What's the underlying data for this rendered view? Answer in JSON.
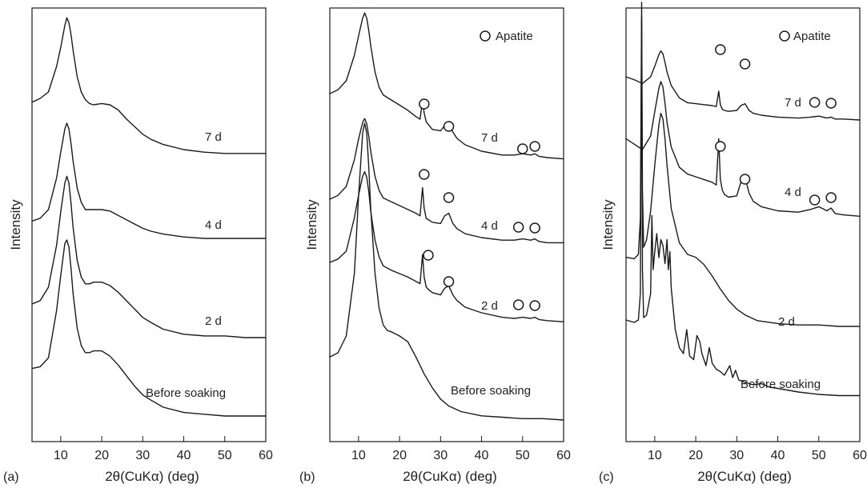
{
  "chart_data": [
    {
      "type": "line",
      "panel_label": "(a)",
      "xlabel": "2θ(CuKα) (deg)",
      "ylabel": "Intensity",
      "xlim": [
        3,
        60
      ],
      "xticks": [
        10,
        20,
        30,
        40,
        50,
        60
      ],
      "y_ticks_shown": false,
      "legend": null,
      "series": [
        {
          "name": "7 d",
          "baseline": 0.0,
          "x": [
            3,
            5,
            7,
            9,
            10,
            11,
            11.5,
            12,
            12.5,
            13,
            14,
            15,
            16,
            17,
            18,
            20,
            22,
            24,
            26,
            28,
            30,
            32,
            35,
            40,
            45,
            50,
            55,
            60
          ],
          "y": [
            0.42,
            0.45,
            0.5,
            0.7,
            0.85,
            1.02,
            1.08,
            1.04,
            0.95,
            0.83,
            0.62,
            0.5,
            0.44,
            0.41,
            0.4,
            0.41,
            0.4,
            0.36,
            0.29,
            0.23,
            0.17,
            0.13,
            0.09,
            0.05,
            0.03,
            0.02,
            0.02,
            0.02
          ]
        },
        {
          "name": "4 d",
          "baseline": 0.0,
          "x": [
            3,
            5,
            7,
            9,
            10,
            11,
            11.5,
            12,
            12.5,
            13,
            14,
            15,
            16,
            17,
            18,
            20,
            22,
            24,
            26,
            28,
            30,
            32,
            35,
            40,
            45,
            50,
            55,
            60
          ],
          "y": [
            0.12,
            0.14,
            0.2,
            0.42,
            0.6,
            0.76,
            0.8,
            0.76,
            0.66,
            0.54,
            0.35,
            0.25,
            0.2,
            0.2,
            0.2,
            0.2,
            0.19,
            0.16,
            0.13,
            0.1,
            0.07,
            0.05,
            0.03,
            0.01,
            0.0,
            0.0,
            0.0,
            0.0
          ]
        },
        {
          "name": "2 d",
          "baseline": 0.0,
          "x": [
            3,
            5,
            7,
            9,
            10,
            11,
            11.5,
            12,
            12.5,
            13,
            14,
            15,
            16,
            17,
            18,
            20,
            22,
            24,
            26,
            28,
            30,
            32,
            35,
            40,
            45,
            50,
            55,
            60
          ],
          "y": [
            0.2,
            0.22,
            0.3,
            0.55,
            0.75,
            0.92,
            0.96,
            0.92,
            0.8,
            0.66,
            0.46,
            0.36,
            0.32,
            0.32,
            0.33,
            0.33,
            0.31,
            0.27,
            0.22,
            0.17,
            0.12,
            0.09,
            0.05,
            0.02,
            0.01,
            0.01,
            0.0,
            0.0
          ]
        },
        {
          "name": "Before soaking",
          "baseline": 0.0,
          "x": [
            3,
            5,
            7,
            9,
            10,
            11,
            11.5,
            12,
            12.5,
            13,
            14,
            15,
            16,
            17,
            18,
            20,
            22,
            24,
            26,
            28,
            30,
            32,
            35,
            40,
            45,
            50,
            55,
            60
          ],
          "y": [
            0.27,
            0.28,
            0.33,
            0.6,
            0.8,
            0.98,
            1.0,
            0.96,
            0.84,
            0.7,
            0.5,
            0.4,
            0.36,
            0.36,
            0.37,
            0.37,
            0.34,
            0.29,
            0.23,
            0.17,
            0.12,
            0.09,
            0.05,
            0.02,
            0.01,
            0.0,
            0.0,
            0.0
          ]
        }
      ]
    },
    {
      "type": "line",
      "panel_label": "(b)",
      "xlabel": "2θ(CuKα) (deg)",
      "ylabel": "Intensity",
      "xlim": [
        3,
        60
      ],
      "xticks": [
        10,
        20,
        30,
        40,
        50,
        60
      ],
      "y_ticks_shown": false,
      "legend": {
        "marker": "open-circle",
        "label": "Apatite",
        "position": "top-right"
      },
      "series": [
        {
          "name": "7 d",
          "x": [
            3,
            5,
            7,
            9,
            10,
            11,
            11.5,
            12,
            12.5,
            13,
            14,
            15,
            16,
            18,
            20,
            22,
            24,
            25,
            25.6,
            26,
            26.5,
            27,
            28,
            30,
            31,
            32,
            33,
            34,
            36,
            40,
            45,
            48,
            50,
            52,
            53,
            54,
            56,
            60
          ],
          "y": [
            0.55,
            0.58,
            0.65,
            0.85,
            1.0,
            1.14,
            1.18,
            1.14,
            1.04,
            0.92,
            0.72,
            0.6,
            0.54,
            0.5,
            0.46,
            0.42,
            0.37,
            0.35,
            0.5,
            0.4,
            0.33,
            0.31,
            0.27,
            0.26,
            0.3,
            0.32,
            0.25,
            0.2,
            0.15,
            0.1,
            0.07,
            0.07,
            0.08,
            0.07,
            0.08,
            0.06,
            0.05,
            0.04
          ]
        },
        {
          "name": "4 d",
          "x": [
            3,
            5,
            7,
            9,
            10,
            11,
            11.5,
            12,
            12.5,
            13,
            14,
            15,
            16,
            18,
            20,
            22,
            24,
            25,
            25.6,
            26,
            26.5,
            27,
            28,
            30,
            31,
            32,
            33,
            34,
            36,
            40,
            45,
            48,
            50,
            52,
            53,
            54,
            56,
            60
          ],
          "y": [
            0.35,
            0.38,
            0.45,
            0.66,
            0.82,
            0.95,
            0.98,
            0.94,
            0.84,
            0.72,
            0.53,
            0.42,
            0.36,
            0.33,
            0.3,
            0.27,
            0.24,
            0.22,
            0.44,
            0.28,
            0.2,
            0.19,
            0.17,
            0.16,
            0.22,
            0.24,
            0.16,
            0.12,
            0.08,
            0.05,
            0.03,
            0.03,
            0.04,
            0.03,
            0.04,
            0.02,
            0.01,
            0.01
          ]
        },
        {
          "name": "2 d",
          "x": [
            3,
            5,
            7,
            9,
            10,
            11,
            11.5,
            12,
            12.5,
            13,
            14,
            15,
            16,
            18,
            20,
            22,
            24,
            25,
            25.6,
            26,
            26.5,
            27,
            28,
            30,
            31,
            32,
            33,
            34,
            36,
            40,
            45,
            48,
            50,
            52,
            53,
            54,
            56,
            60
          ],
          "y": [
            0.55,
            0.58,
            0.65,
            0.95,
            1.15,
            1.32,
            1.36,
            1.31,
            1.18,
            1.0,
            0.75,
            0.6,
            0.52,
            0.48,
            0.45,
            0.42,
            0.38,
            0.36,
            0.62,
            0.42,
            0.33,
            0.31,
            0.28,
            0.26,
            0.32,
            0.34,
            0.26,
            0.21,
            0.15,
            0.1,
            0.06,
            0.05,
            0.06,
            0.05,
            0.06,
            0.04,
            0.03,
            0.02
          ]
        },
        {
          "name": "Before soaking",
          "x": [
            3,
            5,
            7,
            9,
            10,
            11,
            11.5,
            12,
            12.5,
            13,
            14,
            15,
            16,
            17,
            18,
            20,
            22,
            24,
            26,
            28,
            30,
            32,
            35,
            40,
            45,
            50,
            55,
            60
          ],
          "y": [
            0.45,
            0.48,
            0.6,
            1.05,
            1.6,
            2.05,
            2.12,
            2.05,
            1.8,
            1.5,
            1.05,
            0.8,
            0.68,
            0.64,
            0.63,
            0.6,
            0.56,
            0.45,
            0.33,
            0.23,
            0.15,
            0.1,
            0.06,
            0.03,
            0.02,
            0.01,
            0.01,
            0.0
          ]
        }
      ],
      "apatite_markers": [
        {
          "series": "7 d",
          "x": [
            26,
            32,
            50,
            53
          ]
        },
        {
          "series": "4 d",
          "x": [
            26,
            32,
            49,
            53
          ]
        },
        {
          "series": "2 d",
          "x": [
            27,
            32,
            49,
            53
          ]
        }
      ]
    },
    {
      "type": "line",
      "panel_label": "(c)",
      "xlabel": "2θ(CuKα) (deg)",
      "ylabel": "Intensity",
      "xlim": [
        3,
        60
      ],
      "xticks": [
        10,
        20,
        30,
        40,
        50,
        60
      ],
      "y_ticks_shown": false,
      "legend": {
        "marker": "open-circle",
        "label": "Apatite",
        "position": "top-right"
      },
      "series": [
        {
          "name": "7 d",
          "x": [
            3,
            5,
            7,
            9,
            10,
            11,
            11.5,
            12,
            12.5,
            13,
            14,
            16,
            18,
            20,
            22,
            24,
            25,
            25.6,
            26,
            26.5,
            27,
            28,
            30,
            31,
            32,
            33,
            34,
            36,
            40,
            45,
            48,
            50,
            52,
            53,
            54,
            56,
            60
          ],
          "y": [
            0.45,
            0.42,
            0.38,
            0.45,
            0.56,
            0.68,
            0.72,
            0.69,
            0.6,
            0.5,
            0.36,
            0.23,
            0.18,
            0.17,
            0.16,
            0.15,
            0.14,
            0.3,
            0.16,
            0.11,
            0.1,
            0.09,
            0.1,
            0.15,
            0.17,
            0.1,
            0.07,
            0.05,
            0.03,
            0.02,
            0.03,
            0.04,
            0.02,
            0.03,
            0.01,
            0.01,
            0.0
          ]
        },
        {
          "name": "4 d",
          "x": [
            3,
            5,
            7,
            9,
            10,
            11,
            11.5,
            12,
            12.5,
            13,
            14,
            16,
            18,
            20,
            22,
            24,
            25,
            25.6,
            26,
            26.5,
            27,
            28,
            30,
            31,
            32,
            33,
            34,
            36,
            40,
            45,
            48,
            50,
            52,
            53,
            54,
            56,
            60
          ],
          "y": [
            0.58,
            0.54,
            0.5,
            0.6,
            0.78,
            0.95,
            1.0,
            0.96,
            0.84,
            0.7,
            0.52,
            0.37,
            0.32,
            0.3,
            0.28,
            0.26,
            0.24,
            0.58,
            0.28,
            0.2,
            0.17,
            0.15,
            0.16,
            0.26,
            0.3,
            0.18,
            0.12,
            0.08,
            0.05,
            0.04,
            0.06,
            0.08,
            0.05,
            0.07,
            0.03,
            0.02,
            0.01
          ]
        },
        {
          "name": "2 d",
          "x": [
            3,
            5,
            6,
            6.5,
            6.8,
            7,
            7.3,
            8,
            9,
            10,
            11,
            11.5,
            12,
            12.5,
            13,
            14,
            16,
            18,
            20,
            22,
            24,
            26,
            28,
            30,
            32,
            35,
            40,
            45,
            50,
            55,
            60
          ],
          "y": [
            0.48,
            0.47,
            0.5,
            0.75,
            2.25,
            0.95,
            0.55,
            0.6,
            0.8,
            1.12,
            1.4,
            1.48,
            1.44,
            1.3,
            1.12,
            0.82,
            0.58,
            0.5,
            0.48,
            0.43,
            0.35,
            0.26,
            0.18,
            0.12,
            0.08,
            0.04,
            0.02,
            0.01,
            0.01,
            0.0,
            0.0
          ]
        },
        {
          "name": "Before soaking",
          "x": [
            3,
            5,
            6,
            6.5,
            6.8,
            7,
            7.3,
            8,
            9,
            9.3,
            9.6,
            10,
            10.5,
            11,
            11.5,
            12,
            12.5,
            13,
            13.3,
            13.7,
            14,
            15,
            16,
            17,
            17.8,
            18.5,
            19.5,
            20.3,
            21,
            21.5,
            22.5,
            23.3,
            24,
            25,
            26,
            27,
            28.3,
            29,
            29.7,
            30.5,
            32,
            34,
            36,
            38,
            40,
            45,
            50,
            55,
            60
          ],
          "y": [
            0.68,
            0.66,
            0.68,
            0.9,
            3.2,
            1.1,
            0.7,
            0.72,
            0.9,
            1.55,
            1.1,
            1.25,
            1.4,
            1.2,
            1.35,
            1.3,
            1.15,
            1.35,
            1.1,
            1.25,
            0.95,
            0.6,
            0.45,
            0.4,
            0.6,
            0.38,
            0.35,
            0.55,
            0.5,
            0.4,
            0.3,
            0.45,
            0.32,
            0.27,
            0.25,
            0.22,
            0.3,
            0.2,
            0.26,
            0.18,
            0.16,
            0.14,
            0.15,
            0.12,
            0.11,
            0.08,
            0.06,
            0.05,
            0.05
          ]
        }
      ],
      "apatite_markers": [
        {
          "series": "7 d",
          "x": [
            26,
            32,
            49,
            53
          ]
        },
        {
          "series": "4 d",
          "x": [
            26,
            32,
            49,
            53
          ]
        }
      ]
    }
  ]
}
